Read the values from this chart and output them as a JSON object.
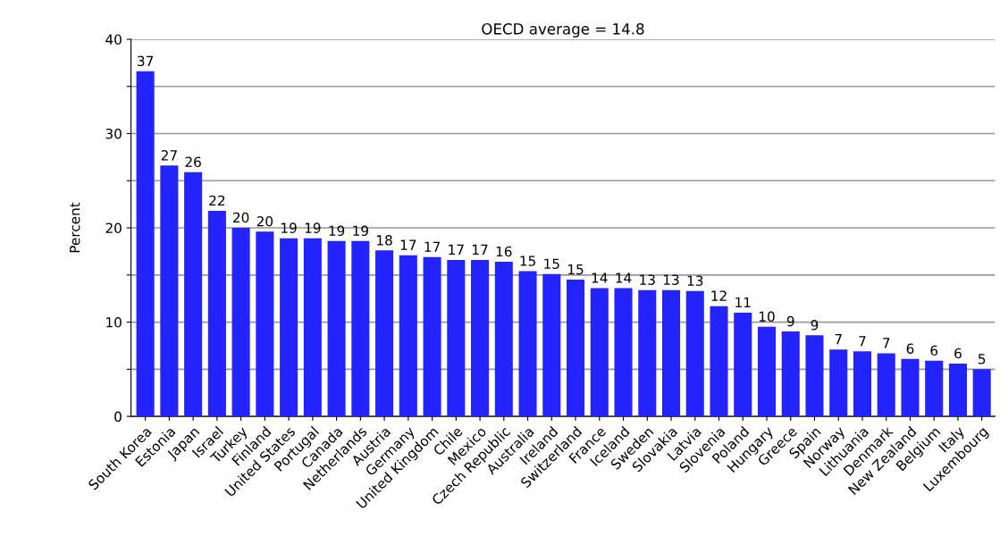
{
  "chart_data": {
    "type": "bar",
    "title": "OECD average = 14.8",
    "ylabel": "Percent",
    "categories": [
      "South Korea",
      "Estonia",
      "Japan",
      "Israel",
      "Turkey",
      "Finland",
      "United States",
      "Portugal",
      "Canada",
      "Netherlands",
      "Austria",
      "Germany",
      "United Kingdom",
      "Chile",
      "Mexico",
      "Czech Republic",
      "Australia",
      "Ireland",
      "Switzerland",
      "France",
      "Iceland",
      "Sweden",
      "Slovakia",
      "Latvia",
      "Slovenia",
      "Poland",
      "Hungary",
      "Greece",
      "Spain",
      "Norway",
      "Lithuania",
      "Denmark",
      "New Zealand",
      "Belgium",
      "Italy",
      "Luxembourg"
    ],
    "values": [
      36.6,
      26.6,
      25.9,
      21.8,
      20.0,
      19.6,
      18.9,
      18.9,
      18.6,
      18.6,
      17.6,
      17.1,
      16.9,
      16.6,
      16.6,
      16.4,
      15.4,
      15.1,
      14.5,
      13.6,
      13.6,
      13.4,
      13.4,
      13.3,
      11.7,
      11.0,
      9.5,
      9.0,
      8.6,
      7.1,
      6.9,
      6.7,
      6.1,
      5.9,
      5.6,
      5.0
    ],
    "value_labels": [
      "37",
      "27",
      "26",
      "22",
      "20",
      "20",
      "19",
      "19",
      "19",
      "19",
      "18",
      "17",
      "17",
      "17",
      "17",
      "16",
      "15",
      "15",
      "15",
      "14",
      "14",
      "13",
      "13",
      "13",
      "12",
      "11",
      "10",
      "9",
      "9",
      "7",
      "7",
      "7",
      "6",
      "6",
      "6",
      "5"
    ],
    "color": "#2323fb",
    "ylim": [
      0,
      40
    ],
    "yticks": [
      0,
      {
        "value": 5,
        "label": null
      },
      10,
      {
        "value": 15,
        "label": null
      },
      20,
      {
        "value": 25,
        "label": null
      },
      30,
      {
        "value": 35,
        "label": null
      },
      40
    ],
    "grid": "y",
    "legend": false
  }
}
